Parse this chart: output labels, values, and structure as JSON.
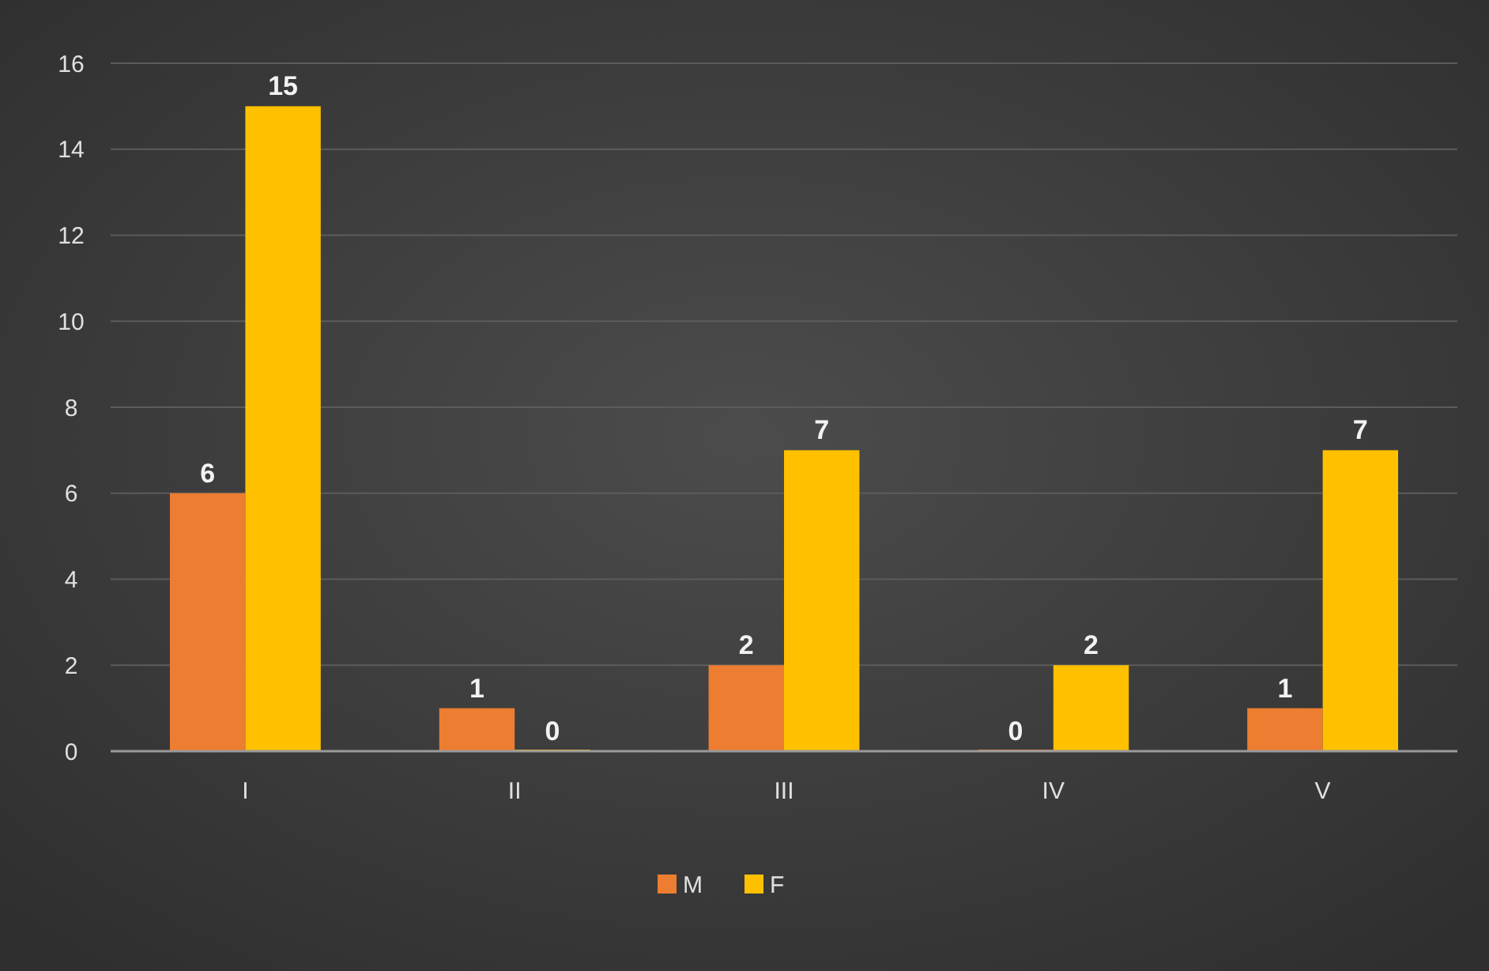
{
  "chart_data": {
    "type": "bar",
    "categories": [
      "I",
      "II",
      "III",
      "IV",
      "V"
    ],
    "series": [
      {
        "name": "M",
        "color": "#ed7d31",
        "values": [
          6,
          1,
          2,
          0,
          1
        ]
      },
      {
        "name": "F",
        "color": "#ffc000",
        "values": [
          15,
          0,
          7,
          2,
          7
        ]
      }
    ],
    "ylim": [
      0,
      16
    ],
    "yticks": [
      0,
      2,
      4,
      6,
      8,
      10,
      12,
      14,
      16
    ],
    "grid": "y",
    "legend": "bottom",
    "data_labels": true
  }
}
